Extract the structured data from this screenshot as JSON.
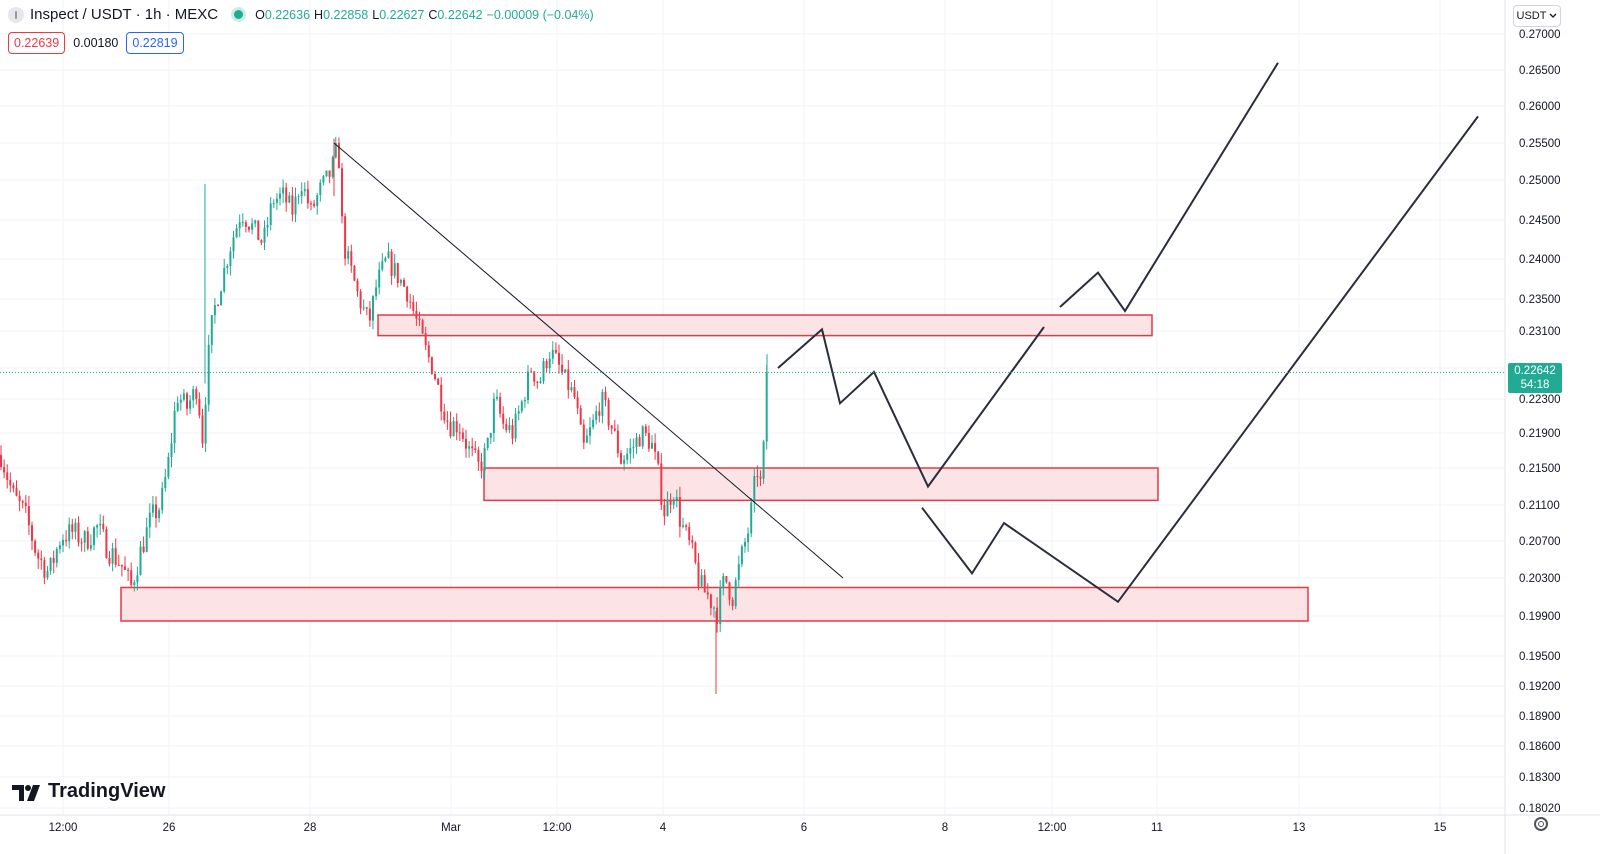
{
  "header": {
    "title": "Inspect / USDT · 1h · MEXC",
    "ohlc": [
      {
        "key": "O",
        "value": "0.22636"
      },
      {
        "key": "H",
        "value": "0.22858"
      },
      {
        "key": "L",
        "value": "0.22627"
      },
      {
        "key": "C",
        "value": "0.22642"
      }
    ],
    "change": "−0.00009 (−0.04%)",
    "sell_price": "0.22639",
    "spread": "0.00180",
    "buy_price": "0.22819"
  },
  "currency_button": "USDT",
  "price_tag": {
    "price": "0.22642",
    "countdown": "54:18"
  },
  "brand": "TradingView",
  "colors": {
    "up": "#22ab94",
    "down": "#f23645",
    "zone_fill": "#fbe3e6",
    "zone_border": "#e53945"
  },
  "chart_data": {
    "type": "candlestick",
    "y_axis_labels": [
      "0.27000",
      "0.26500",
      "0.26000",
      "0.25500",
      "0.25000",
      "0.24500",
      "0.24000",
      "0.23500",
      "0.23100",
      "0.22700",
      "0.22300",
      "0.21900",
      "0.21500",
      "0.21100",
      "0.20700",
      "0.20300",
      "0.19900",
      "0.19500",
      "0.19200",
      "0.18900",
      "0.18600",
      "0.18300",
      "0.18020"
    ],
    "y_range": [
      0.1802,
      0.27
    ],
    "x_axis_labels": [
      "12:00",
      "26",
      "28",
      "Mar",
      "12:00",
      "4",
      "6",
      "8",
      "12:00",
      "11",
      "13",
      "15"
    ],
    "last_price": 0.22642,
    "price_path": [
      [
        0,
        0.2165
      ],
      [
        12,
        0.212
      ],
      [
        24,
        0.21
      ],
      [
        36,
        0.2055
      ],
      [
        48,
        0.2035
      ],
      [
        60,
        0.2075
      ],
      [
        72,
        0.208
      ],
      [
        84,
        0.207
      ],
      [
        96,
        0.2085
      ],
      [
        108,
        0.206
      ],
      [
        120,
        0.2045
      ],
      [
        130,
        0.202
      ],
      [
        140,
        0.206
      ],
      [
        150,
        0.2095
      ],
      [
        160,
        0.211
      ],
      [
        168,
        0.216
      ],
      [
        176,
        0.2235
      ],
      [
        186,
        0.222
      ],
      [
        196,
        0.2245
      ],
      [
        202,
        0.218
      ],
      [
        206,
        0.2265
      ],
      [
        212,
        0.233
      ],
      [
        220,
        0.237
      ],
      [
        230,
        0.242
      ],
      [
        240,
        0.246
      ],
      [
        252,
        0.244
      ],
      [
        262,
        0.242
      ],
      [
        272,
        0.2475
      ],
      [
        282,
        0.248
      ],
      [
        292,
        0.246
      ],
      [
        300,
        0.25
      ],
      [
        310,
        0.246
      ],
      [
        320,
        0.249
      ],
      [
        330,
        0.251
      ],
      [
        337,
        0.255
      ],
      [
        342,
        0.242
      ],
      [
        350,
        0.2385
      ],
      [
        358,
        0.235
      ],
      [
        368,
        0.232
      ],
      [
        376,
        0.237
      ],
      [
        386,
        0.24
      ],
      [
        396,
        0.238
      ],
      [
        406,
        0.236
      ],
      [
        416,
        0.232
      ],
      [
        424,
        0.229
      ],
      [
        432,
        0.227
      ],
      [
        440,
        0.223
      ],
      [
        448,
        0.22
      ],
      [
        458,
        0.22
      ],
      [
        468,
        0.217
      ],
      [
        478,
        0.215
      ],
      [
        486,
        0.217
      ],
      [
        494,
        0.223
      ],
      [
        502,
        0.22
      ],
      [
        512,
        0.219
      ],
      [
        522,
        0.223
      ],
      [
        530,
        0.227
      ],
      [
        538,
        0.225
      ],
      [
        548,
        0.229
      ],
      [
        558,
        0.227
      ],
      [
        566,
        0.225
      ],
      [
        574,
        0.223
      ],
      [
        582,
        0.217
      ],
      [
        592,
        0.22
      ],
      [
        600,
        0.223
      ],
      [
        610,
        0.22
      ],
      [
        620,
        0.216
      ],
      [
        630,
        0.217
      ],
      [
        640,
        0.219
      ],
      [
        650,
        0.218
      ],
      [
        656,
        0.215
      ],
      [
        664,
        0.21
      ],
      [
        672,
        0.213
      ],
      [
        680,
        0.209
      ],
      [
        690,
        0.206
      ],
      [
        700,
        0.202
      ],
      [
        708,
        0.201
      ],
      [
        716,
        0.1995
      ],
      [
        724,
        0.203
      ],
      [
        732,
        0.201
      ],
      [
        740,
        0.205
      ],
      [
        748,
        0.2085
      ],
      [
        756,
        0.215
      ],
      [
        760,
        0.213
      ],
      [
        764,
        0.219
      ],
      [
        767,
        0.2264
      ]
    ],
    "trendline": {
      "from": [
        "28",
        0.255
      ],
      "to": [
        "6",
        0.203
      ]
    },
    "zones": [
      {
        "low": 0.2305,
        "high": 0.233
      },
      {
        "low": 0.2115,
        "high": 0.215
      },
      {
        "low": 0.1985,
        "high": 0.202
      }
    ],
    "projection_paths": [
      [
        [
          778,
          0.227
        ],
        [
          822,
          0.2312
        ],
        [
          840,
          0.2225
        ],
        [
          874,
          0.2265
        ],
        [
          928,
          0.213
        ],
        [
          1044,
          0.2315
        ]
      ],
      [
        [
          1060,
          0.234
        ],
        [
          1098,
          0.2383
        ],
        [
          1125,
          0.2335
        ],
        [
          1278,
          0.266
        ]
      ],
      [
        [
          922,
          0.2107
        ],
        [
          972,
          0.2035
        ],
        [
          1004,
          0.209
        ],
        [
          1118,
          0.2005
        ],
        [
          1478,
          0.2586
        ]
      ]
    ]
  }
}
